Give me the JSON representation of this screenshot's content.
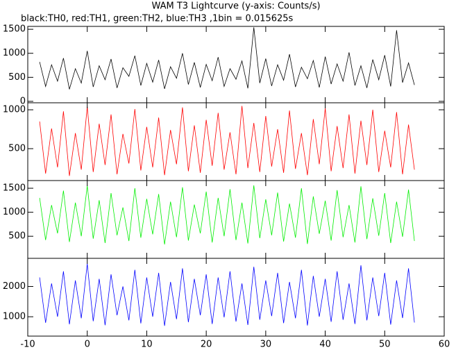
{
  "chart_data": {
    "type": "line",
    "title": "WAM T3 Lightcurve (y-axis: Counts/s)",
    "subtitle": "black:TH0, red:TH1, green:TH2, blue:TH3 ,1bin = 0.015625s",
    "x": [
      -8,
      -7,
      -6,
      -5,
      -4,
      -3,
      -2,
      -1,
      0,
      1,
      2,
      3,
      4,
      5,
      6,
      7,
      8,
      9,
      10,
      11,
      12,
      13,
      14,
      15,
      16,
      17,
      18,
      19,
      20,
      21,
      22,
      23,
      24,
      25,
      26,
      27,
      28,
      29,
      30,
      31,
      32,
      33,
      34,
      35,
      36,
      37,
      38,
      39,
      40,
      41,
      42,
      43,
      44,
      45,
      46,
      47,
      48,
      49,
      50,
      51,
      52,
      53,
      54,
      55
    ],
    "xlim": [
      -10,
      60
    ],
    "xticks": [
      -10,
      0,
      10,
      20,
      30,
      40,
      50,
      60
    ],
    "panels": [
      {
        "color": "#000000",
        "ylim": [
          -30,
          1560
        ],
        "yticks": [
          0,
          500,
          1000,
          1500
        ],
        "values": [
          820,
          310,
          760,
          420,
          900,
          250,
          680,
          380,
          1050,
          300,
          740,
          450,
          880,
          280,
          700,
          520,
          950,
          330,
          790,
          400,
          860,
          260,
          720,
          480,
          1000,
          350,
          810,
          290,
          770,
          430,
          920,
          310,
          680,
          460,
          840,
          270,
          1540,
          380,
          890,
          320,
          760,
          440,
          980,
          300,
          710,
          470,
          850,
          290,
          930,
          360,
          780,
          420,
          1020,
          330,
          740,
          280,
          870,
          450,
          960,
          310,
          1480,
          390,
          800,
          340
        ]
      },
      {
        "color": "#ff0000",
        "ylim": [
          90,
          1090
        ],
        "yticks": [
          500,
          1000
        ],
        "values": [
          850,
          180,
          760,
          260,
          980,
          150,
          700,
          230,
          1040,
          200,
          820,
          290,
          940,
          170,
          690,
          310,
          1010,
          220,
          780,
          260,
          900,
          160,
          740,
          300,
          1030,
          210,
          800,
          190,
          870,
          280,
          960,
          230,
          710,
          170,
          1050,
          250,
          830,
          200,
          920,
          270,
          750,
          190,
          990,
          240,
          700,
          160,
          880,
          300,
          1020,
          210,
          790,
          250,
          940,
          180,
          860,
          290,
          1000,
          200,
          730,
          260,
          970,
          170,
          810,
          230
        ]
      },
      {
        "color": "#00ee00",
        "ylim": [
          40,
          1660
        ],
        "yticks": [
          500,
          1000,
          1500
        ],
        "values": [
          1300,
          420,
          1150,
          560,
          1450,
          380,
          1200,
          500,
          1550,
          450,
          1250,
          360,
          1400,
          520,
          1100,
          400,
          1500,
          470,
          1280,
          540,
          1380,
          330,
          1220,
          480,
          1520,
          410,
          1160,
          560,
          1430,
          370,
          1300,
          500,
          1480,
          420,
          1200,
          350,
          1560,
          460,
          1270,
          520,
          1410,
          390,
          1180,
          470,
          1500,
          340,
          1330,
          550,
          1240,
          410,
          1460,
          480,
          1150,
          370,
          1540,
          440,
          1290,
          510,
          1400,
          360,
          1220,
          490,
          1470,
          400
        ]
      },
      {
        "color": "#0000ff",
        "ylim": [
          360,
          2930
        ],
        "yticks": [
          1000,
          2000
        ],
        "values": [
          2300,
          800,
          2100,
          1000,
          2500,
          750,
          2200,
          950,
          2750,
          850,
          2250,
          720,
          2400,
          1050,
          2000,
          880,
          2550,
          780,
          2300,
          1000,
          2450,
          700,
          2150,
          920,
          2600,
          820,
          2250,
          1050,
          2400,
          760,
          2300,
          980,
          2500,
          840,
          2100,
          730,
          2650,
          900,
          2200,
          1020,
          2450,
          790,
          2150,
          950,
          2550,
          710,
          2350,
          1000,
          2250,
          830,
          2500,
          900,
          2100,
          760,
          2700,
          880,
          2300,
          1020,
          2450,
          740,
          2200,
          960,
          2600,
          810
        ]
      }
    ]
  }
}
